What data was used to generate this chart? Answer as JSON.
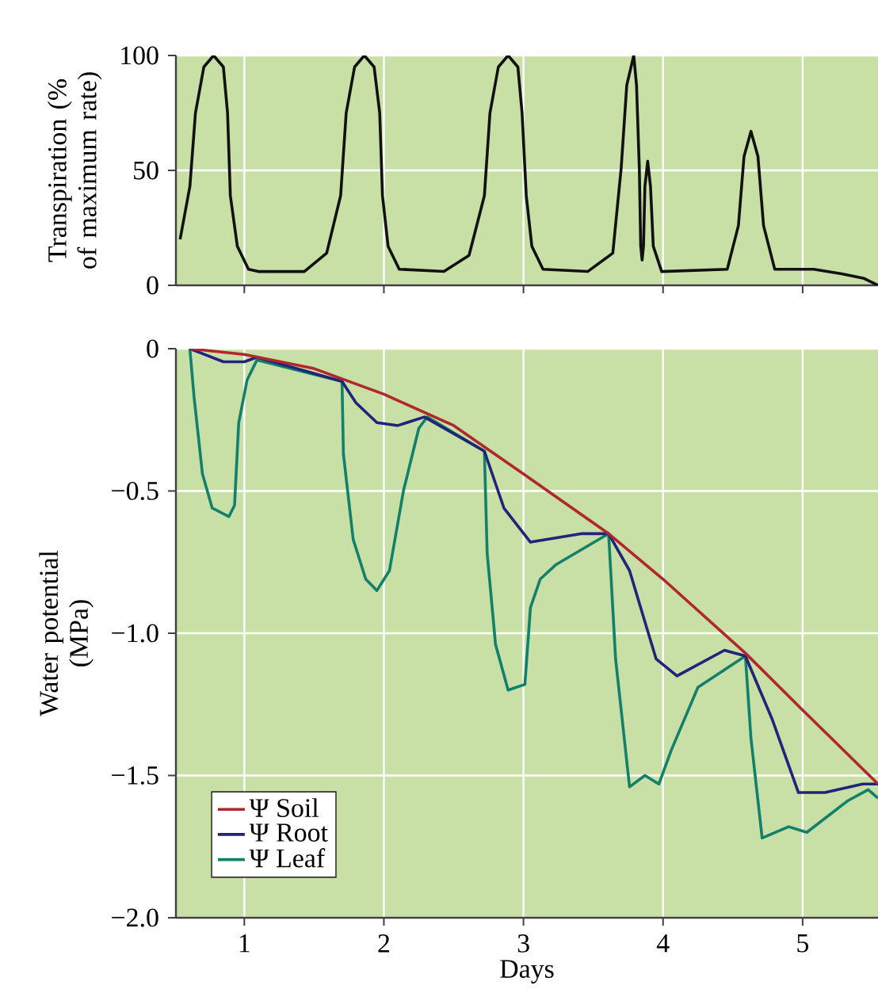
{
  "chart_data": [
    {
      "type": "line",
      "ylabel": "Transpiration (% of maximum rate)",
      "xlim": [
        0.51,
        5.54
      ],
      "ylim": [
        0,
        100
      ],
      "xticks": [
        {
          "value": 1,
          "label": null
        },
        {
          "value": 2,
          "label": null
        },
        {
          "value": 3,
          "label": null
        },
        {
          "value": 4,
          "label": null
        },
        {
          "value": 5,
          "label": null
        }
      ],
      "yticks": [
        0,
        50,
        100
      ],
      "tick_labels": "y",
      "grid": true,
      "legend": false,
      "series": [
        {
          "color": "#111111",
          "x": [
            0.54,
            0.61,
            0.65,
            0.71,
            0.78,
            0.85,
            0.88,
            0.9,
            0.95,
            1.03,
            1.1,
            1.43,
            1.59,
            1.69,
            1.73,
            1.79,
            1.86,
            1.93,
            1.97,
            1.99,
            2.03,
            2.11,
            2.43,
            2.61,
            2.72,
            2.76,
            2.82,
            2.89,
            2.96,
            2.99,
            3.02,
            3.06,
            3.14,
            3.46,
            3.64,
            3.7,
            3.74,
            3.79,
            3.81,
            3.83,
            3.84,
            3.85,
            3.86,
            3.87,
            3.89,
            3.91,
            3.93,
            3.99,
            4.46,
            4.54,
            4.58,
            4.63,
            4.68,
            4.72,
            4.8,
            5.08,
            5.28,
            5.44,
            5.54
          ],
          "values": [
            20,
            43,
            75,
            95,
            100,
            95,
            75,
            39,
            17,
            7,
            6,
            6,
            14,
            39,
            75,
            95,
            100,
            95,
            75,
            39,
            17,
            7,
            6,
            13,
            39,
            75,
            95,
            100,
            95,
            75,
            39,
            17,
            7,
            6,
            14,
            51,
            87,
            100,
            87,
            51,
            17,
            11,
            17,
            43,
            54,
            43,
            17,
            6,
            7,
            26,
            56,
            67,
            56,
            26,
            7,
            7,
            5,
            3,
            0
          ]
        }
      ]
    },
    {
      "type": "line",
      "xlabel": "Days",
      "ylabel": "Water potential (MPa)",
      "xlim": [
        0.51,
        5.54
      ],
      "ylim": [
        -2.0,
        0
      ],
      "xticks": [
        1,
        2,
        3,
        4,
        5
      ],
      "yticks": [
        {
          "value": 0,
          "label": "0"
        },
        {
          "value": -0.5,
          "label": "−0.5"
        },
        {
          "value": -1.0,
          "label": "−1.0"
        },
        {
          "value": -1.5,
          "label": "−1.5"
        },
        {
          "value": -2.0,
          "label": "−2.0"
        }
      ],
      "grid": true,
      "legend": "bottom left",
      "series": [
        {
          "name": "Ψ Soil",
          "color": "#b0282c",
          "x": [
            0.61,
            1.0,
            1.5,
            2.0,
            2.5,
            3.0,
            3.61,
            4.0,
            4.59,
            5.0,
            5.54
          ],
          "values": [
            0,
            -0.02,
            -0.07,
            -0.16,
            -0.27,
            -0.44,
            -0.65,
            -0.81,
            -1.07,
            -1.27,
            -1.53
          ]
        },
        {
          "name": "Ψ Root",
          "color": "#22237a",
          "x": [
            0.61,
            0.85,
            1.0,
            1.09,
            1.7,
            1.8,
            1.95,
            2.1,
            2.29,
            2.72,
            2.86,
            3.05,
            3.42,
            3.61,
            3.76,
            3.95,
            4.1,
            4.44,
            4.59,
            4.78,
            4.97,
            5.16,
            5.43,
            5.54
          ],
          "values": [
            0,
            -0.046,
            -0.046,
            -0.03,
            -0.115,
            -0.19,
            -0.26,
            -0.27,
            -0.24,
            -0.36,
            -0.56,
            -0.68,
            -0.65,
            -0.65,
            -0.78,
            -1.09,
            -1.15,
            -1.06,
            -1.08,
            -1.3,
            -1.56,
            -1.56,
            -1.53,
            -1.53
          ]
        },
        {
          "name": "Ψ Leaf",
          "color": "#12806a",
          "x": [
            0.61,
            0.64,
            0.7,
            0.77,
            0.89,
            0.93,
            0.96,
            1.02,
            1.09,
            1.7,
            1.71,
            1.78,
            1.87,
            1.95,
            2.04,
            2.14,
            2.25,
            2.31,
            2.72,
            2.74,
            2.8,
            2.89,
            3.01,
            3.05,
            3.12,
            3.23,
            3.61,
            3.66,
            3.76,
            3.87,
            3.97,
            4.06,
            4.25,
            4.59,
            4.63,
            4.71,
            4.9,
            5.03,
            5.32,
            5.47,
            5.54
          ],
          "values": [
            0,
            -0.17,
            -0.44,
            -0.56,
            -0.59,
            -0.55,
            -0.26,
            -0.11,
            -0.04,
            -0.115,
            -0.37,
            -0.67,
            -0.81,
            -0.85,
            -0.78,
            -0.5,
            -0.28,
            -0.24,
            -0.36,
            -0.72,
            -1.04,
            -1.2,
            -1.18,
            -0.91,
            -0.81,
            -0.76,
            -0.65,
            -1.09,
            -1.54,
            -1.5,
            -1.53,
            -1.41,
            -1.19,
            -1.08,
            -1.37,
            -1.72,
            -1.68,
            -1.7,
            -1.59,
            -1.55,
            -1.58
          ]
        }
      ]
    }
  ]
}
